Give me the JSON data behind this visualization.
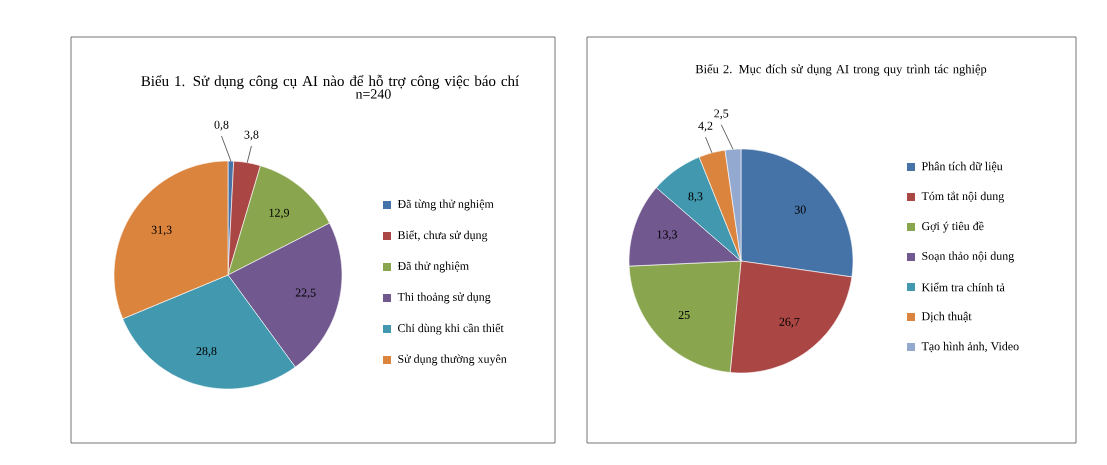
{
  "chart_data": [
    {
      "type": "pie",
      "title": "Biểu 1. Sử dụng công cụ AI nào để hỗ trợ công việc báo chí",
      "subtitle": "n=240",
      "categories": [
        "Đã từng thử nghiệm",
        "Biết, chưa sử dụng",
        "Đã thử nghiệm",
        "Thi thoảng sử dụng",
        "Chỉ dùng khi cần thiết",
        "Sử dụng thường xuyên"
      ],
      "values": [
        0.8,
        3.8,
        12.9,
        22.5,
        28.8,
        31.3
      ],
      "value_labels": [
        "0,8",
        "3,8",
        "12,9",
        "22,5",
        "28,8",
        "31,3"
      ],
      "colors": [
        "#4572a7",
        "#aa4643",
        "#89a54e",
        "#71588f",
        "#4198af",
        "#db843d"
      ],
      "legend": "right"
    },
    {
      "type": "pie",
      "title": "Biểu 2. Mục đích sử dụng AI trong quy trình tác nghiệp",
      "categories": [
        "Phân tích dữ liệu",
        "Tóm tắt nội dung",
        "Gợi ý tiêu đề",
        "Soạn thảo nội dung",
        "Kiểm tra chính tả",
        "Dịch thuật",
        "Tạo hình ảnh, Video"
      ],
      "values": [
        30,
        26.7,
        25,
        13.3,
        8.3,
        4.2,
        2.5
      ],
      "value_labels": [
        "30",
        "26,7",
        "25",
        "13,3",
        "8,3",
        "4,2",
        "2,5"
      ],
      "colors": [
        "#4572a7",
        "#aa4643",
        "#89a54e",
        "#71588f",
        "#4198af",
        "#db843d",
        "#93a9cf"
      ],
      "legend": "right"
    }
  ]
}
